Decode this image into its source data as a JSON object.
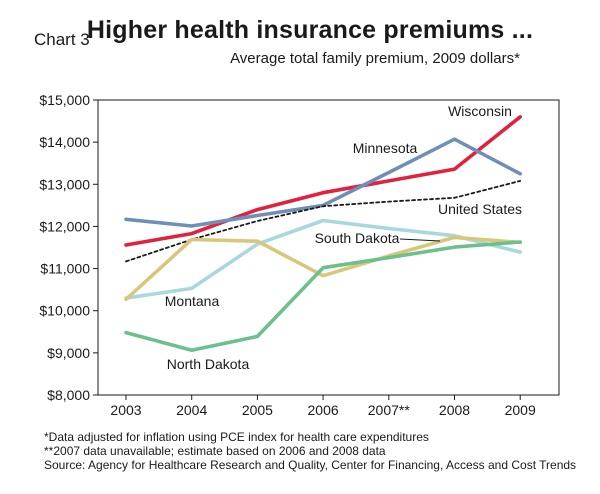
{
  "header": {
    "chart_number": "Chart 3",
    "title": "Higher health insurance premiums ...",
    "subtitle": "Average total family premium, 2009 dollars*"
  },
  "notes": [
    "*Data adjusted for inflation using PCE index for health care expenditures",
    "**2007 data unavailable; estimate based on 2006 and 2008 data",
    "Source: Agency for Healthcare Research and Quality, Center for Financing, Access and Cost Trends"
  ],
  "chart_data": {
    "type": "line",
    "categories": [
      "2003",
      "2004",
      "2005",
      "2006",
      "2007**",
      "2008",
      "2009"
    ],
    "ylim": [
      8000,
      15000
    ],
    "yticks": [
      8000,
      9000,
      10000,
      11000,
      12000,
      13000,
      14000,
      15000
    ],
    "ytick_labels": [
      "$8,000",
      "$9,000",
      "$10,000",
      "$11,000",
      "$12,000",
      "$13,000",
      "$14,000",
      "$15,000"
    ],
    "grid": false,
    "series": [
      {
        "name": "Wisconsin",
        "color": "#e0223f",
        "dash": false,
        "values": [
          11560,
          11830,
          12400,
          12800,
          13080,
          13360,
          14600
        ]
      },
      {
        "name": "Minnesota",
        "color": "#6f8fb8",
        "dash": false,
        "values": [
          12170,
          12010,
          12260,
          12500,
          13280,
          14070,
          13250
        ]
      },
      {
        "name": "United States",
        "color": "#1a1a1a",
        "dash": true,
        "values": [
          11170,
          11690,
          12130,
          12480,
          12590,
          12680,
          13080
        ]
      },
      {
        "name": "South Dakota",
        "color": "#a8d8de",
        "dash": false,
        "values": [
          10300,
          10530,
          11580,
          12140,
          11950,
          11780,
          11390
        ]
      },
      {
        "name": "Montana",
        "color": "#d8c77a",
        "dash": false,
        "values": [
          10270,
          11690,
          11650,
          10830,
          11300,
          11740,
          11620
        ]
      },
      {
        "name": "North Dakota",
        "color": "#6cc08c",
        "dash": false,
        "values": [
          9480,
          9060,
          9390,
          11020,
          11260,
          11510,
          11630
        ]
      }
    ]
  }
}
